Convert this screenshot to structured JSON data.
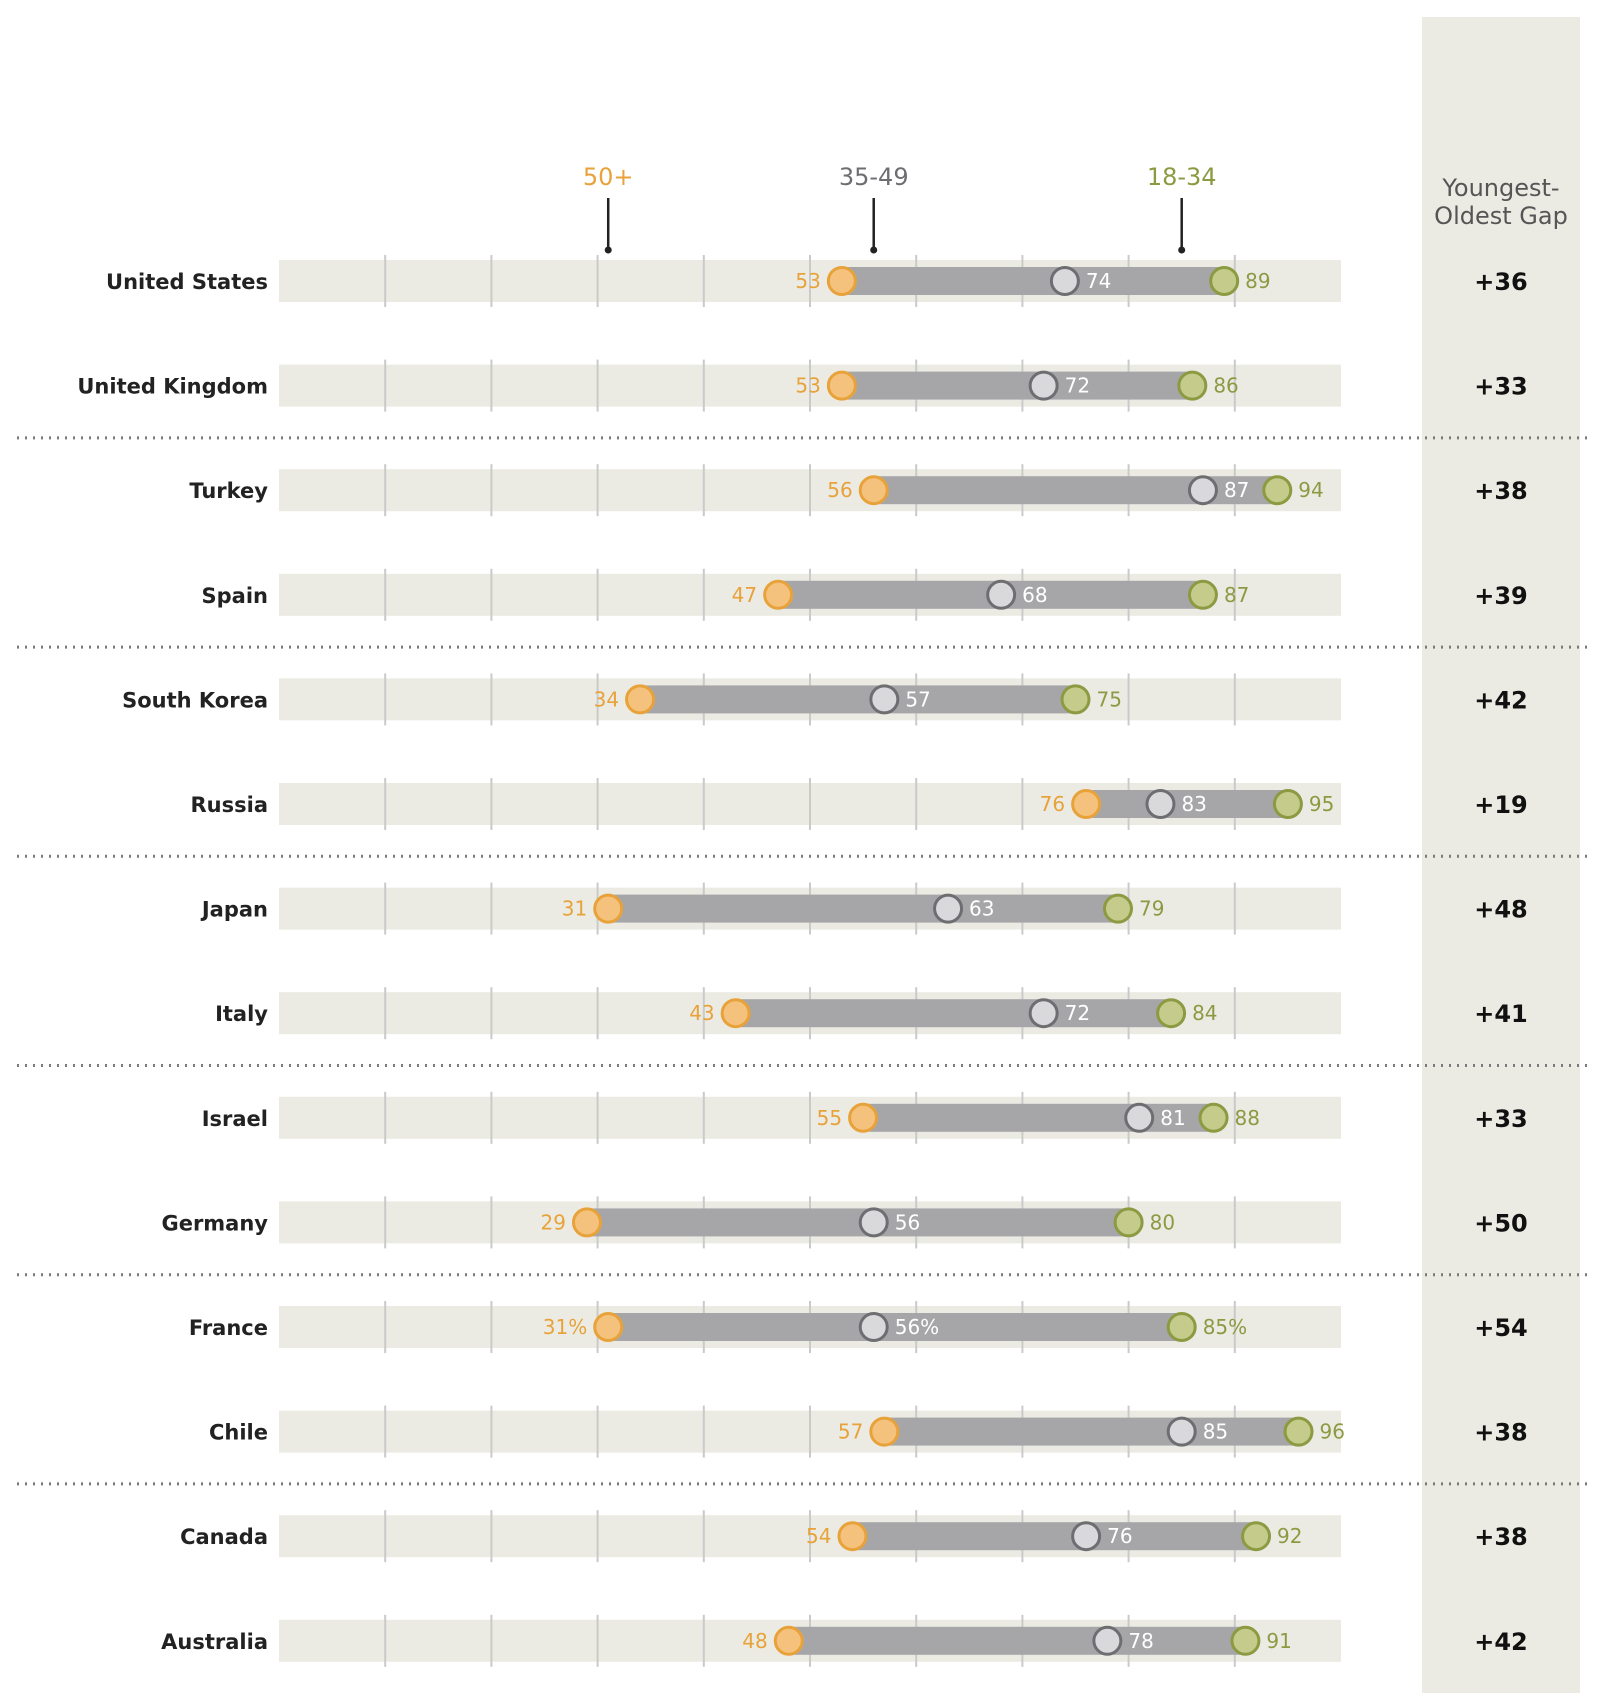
{
  "chart_data": {
    "type": "dumbbell",
    "xlim": [
      0,
      100
    ],
    "gap_header": [
      "Youngest-",
      "Oldest Gap"
    ],
    "series": [
      {
        "name": "50+",
        "key": "older",
        "color": "#E8A23A",
        "fill": "#F5C27E"
      },
      {
        "name": "35-49",
        "key": "middle",
        "color": "#6E6E72",
        "fill": "#D9D9DB"
      },
      {
        "name": "18-34",
        "key": "young",
        "color": "#8C9A42",
        "fill": "#C5CB8A"
      }
    ],
    "header_reference": "France",
    "rows": [
      {
        "country": "United States",
        "older": 53,
        "middle": 74,
        "young": 89,
        "gap": "+36"
      },
      {
        "country": "United Kingdom",
        "older": 53,
        "middle": 72,
        "young": 86,
        "gap": "+33"
      },
      {
        "country": "Turkey",
        "older": 56,
        "middle": 87,
        "young": 94,
        "gap": "+38"
      },
      {
        "country": "Spain",
        "older": 47,
        "middle": 68,
        "young": 87,
        "gap": "+39"
      },
      {
        "country": "South Korea",
        "older": 34,
        "middle": 57,
        "young": 75,
        "gap": "+42"
      },
      {
        "country": "Russia",
        "older": 76,
        "middle": 83,
        "young": 95,
        "gap": "+19"
      },
      {
        "country": "Japan",
        "older": 31,
        "middle": 63,
        "young": 79,
        "gap": "+48"
      },
      {
        "country": "Italy",
        "older": 43,
        "middle": 72,
        "young": 84,
        "gap": "+41"
      },
      {
        "country": "Israel",
        "older": 55,
        "middle": 81,
        "young": 88,
        "gap": "+33"
      },
      {
        "country": "Germany",
        "older": 29,
        "middle": 56,
        "young": 80,
        "gap": "+50"
      },
      {
        "country": "France",
        "older": 31,
        "middle": 56,
        "young": 85,
        "gap": "+54",
        "older_label": "31%",
        "middle_label": "56%",
        "young_label": "85%"
      },
      {
        "country": "Chile",
        "older": 57,
        "middle": 85,
        "young": 96,
        "gap": "+38"
      },
      {
        "country": "Canada",
        "older": 54,
        "middle": 76,
        "young": 92,
        "gap": "+38"
      },
      {
        "country": "Australia",
        "older": 48,
        "middle": 78,
        "young": 91,
        "gap": "+42"
      }
    ],
    "group_separators_after_rows": [
      2,
      4,
      6,
      8,
      10,
      12
    ]
  }
}
